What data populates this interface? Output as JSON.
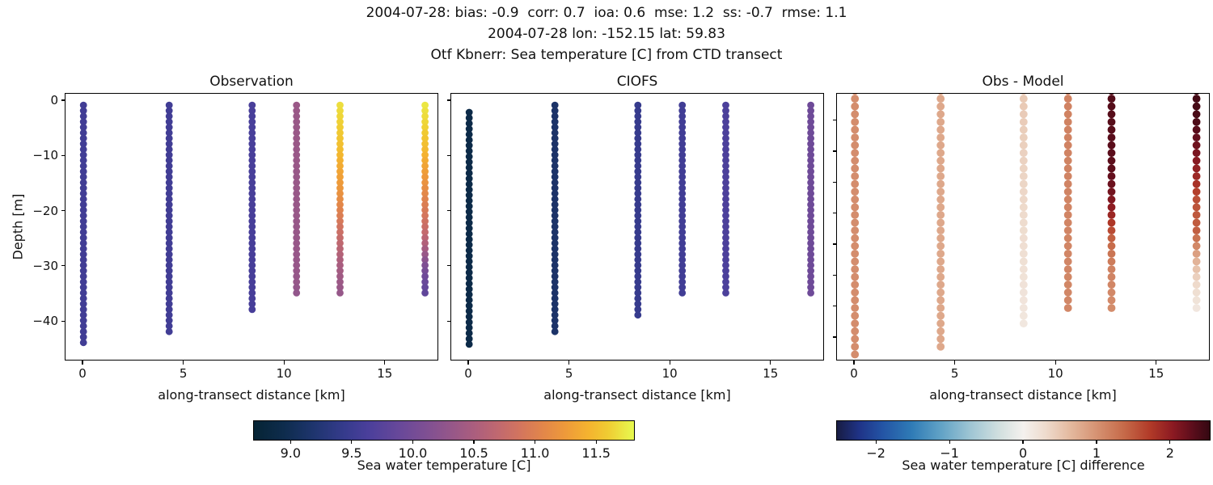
{
  "header": {
    "line1": "2004-07-28: bias: -0.9  corr: 0.7  ioa: 0.6  mse: 1.2  ss: -0.7  rmse: 1.1",
    "line2": "2004-07-28 lon: -152.15 lat: 59.83",
    "line3": "Otf Kbnerr: Sea temperature [C] from CTD transect"
  },
  "axes": {
    "xlabel": "along-transect distance [km]",
    "ylabel": "Depth [m]",
    "x_tick_values": [
      0,
      5,
      10,
      15
    ],
    "x_tick_labels": [
      "0",
      "5",
      "10",
      "15"
    ],
    "y_tick_values": [
      0,
      -10,
      -20,
      -30,
      -40
    ],
    "y_tick_labels": [
      "0",
      "−10",
      "−20",
      "−30",
      "−40"
    ],
    "panel3_y_tick_values": [
      -5,
      -10,
      -15,
      -20,
      -25,
      -30,
      -35,
      -40
    ]
  },
  "panels": [
    {
      "title": "Observation"
    },
    {
      "title": "CIOFS"
    },
    {
      "title": "Obs - Model"
    }
  ],
  "colorbars": [
    {
      "label": "Sea water temperature [C]",
      "tick_values": [
        9.0,
        9.5,
        10.0,
        10.5,
        11.0,
        11.5
      ],
      "tick_labels": [
        "9.0",
        "9.5",
        "10.0",
        "10.5",
        "11.0",
        "11.5"
      ],
      "vmin": 8.7,
      "vmax": 11.81,
      "cmap": "thermal"
    },
    {
      "label": "Sea water temperature [C] difference",
      "tick_values": [
        -2,
        -1,
        0,
        1,
        2
      ],
      "tick_labels": [
        "−2",
        "−1",
        "0",
        "1",
        "2"
      ],
      "vmin": -2.53,
      "vmax": 2.54,
      "cmap": "balance"
    }
  ],
  "colormaps": {
    "thermal": [
      [
        0.0,
        "#062434"
      ],
      [
        0.08,
        "#0e2c4d"
      ],
      [
        0.16,
        "#1f356f"
      ],
      [
        0.24,
        "#363b8d"
      ],
      [
        0.3,
        "#4a3f9b"
      ],
      [
        0.38,
        "#67489a"
      ],
      [
        0.46,
        "#815092"
      ],
      [
        0.52,
        "#965789"
      ],
      [
        0.58,
        "#ab5e7e"
      ],
      [
        0.64,
        "#c06870"
      ],
      [
        0.7,
        "#d3755e"
      ],
      [
        0.76,
        "#e2864a"
      ],
      [
        0.82,
        "#ee9a3a"
      ],
      [
        0.88,
        "#f4b32f"
      ],
      [
        0.93,
        "#f0cb32"
      ],
      [
        1.0,
        "#e7fa4f"
      ]
    ],
    "balance": [
      [
        0.0,
        "#181c43"
      ],
      [
        0.06,
        "#1f3387"
      ],
      [
        0.12,
        "#2353a4"
      ],
      [
        0.2,
        "#2f7bb6"
      ],
      [
        0.28,
        "#62a3c6"
      ],
      [
        0.36,
        "#a0c6d4"
      ],
      [
        0.44,
        "#d4e1e0"
      ],
      [
        0.5,
        "#f4f1ee"
      ],
      [
        0.56,
        "#eedbcd"
      ],
      [
        0.63,
        "#e3b79c"
      ],
      [
        0.7,
        "#d59070"
      ],
      [
        0.77,
        "#c66a49"
      ],
      [
        0.84,
        "#b13a28"
      ],
      [
        0.9,
        "#8c1a22"
      ],
      [
        0.95,
        "#5f0e1c"
      ],
      [
        1.0,
        "#330812"
      ]
    ]
  },
  "chart_data": [
    {
      "type": "scatter",
      "title": "Observation",
      "xlabel": "along-transect distance [km]",
      "ylabel": "Depth [m]",
      "xlim": [
        -0.8,
        17.75
      ],
      "ylim": [
        -47.3,
        1.2
      ],
      "value": "sea water temperature [C]",
      "cmap": "thermal",
      "vmin": 8.7,
      "vmax": 11.81,
      "columns": [
        {
          "x_km": 0.05,
          "top": -0.9,
          "bottom": -44.8,
          "step": 1.0,
          "profile": [
            [
              -0.9,
              9.55
            ],
            [
              -44.8,
              9.55
            ]
          ]
        },
        {
          "x_km": 4.3,
          "top": -0.9,
          "bottom": -42.8,
          "step": 1.0,
          "profile": [
            [
              -0.9,
              9.55
            ],
            [
              -42.8,
              9.55
            ]
          ]
        },
        {
          "x_km": 8.42,
          "top": -0.9,
          "bottom": -38.6,
          "step": 1.0,
          "profile": [
            [
              -0.9,
              9.62
            ],
            [
              -38.6,
              9.6
            ]
          ]
        },
        {
          "x_km": 10.62,
          "top": -0.9,
          "bottom": -35.5,
          "step": 1.0,
          "profile": [
            [
              -0.9,
              10.35
            ],
            [
              -33,
              10.32
            ],
            [
              -35.5,
              10.27
            ]
          ]
        },
        {
          "x_km": 12.78,
          "top": -0.9,
          "bottom": -35.5,
          "step": 1.0,
          "profile": [
            [
              -0.9,
              11.68
            ],
            [
              -5,
              11.6
            ],
            [
              -9,
              11.5
            ],
            [
              -13,
              11.33
            ],
            [
              -16,
              11.22
            ],
            [
              -19,
              11.07
            ],
            [
              -21,
              10.97
            ],
            [
              -23,
              10.85
            ],
            [
              -26,
              10.68
            ],
            [
              -29,
              10.52
            ],
            [
              -32,
              10.4
            ],
            [
              -35.5,
              10.3
            ]
          ]
        },
        {
          "x_km": 17.0,
          "top": -0.9,
          "bottom": -35.5,
          "step": 1.0,
          "profile": [
            [
              -0.9,
              11.72
            ],
            [
              -5,
              11.62
            ],
            [
              -9,
              11.48
            ],
            [
              -12,
              11.32
            ],
            [
              -15,
              11.18
            ],
            [
              -18,
              11.02
            ],
            [
              -21,
              10.88
            ],
            [
              -24,
              10.72
            ],
            [
              -26,
              10.55
            ],
            [
              -28,
              10.32
            ],
            [
              -30,
              10.1
            ],
            [
              -32,
              9.95
            ],
            [
              -35.5,
              9.8
            ]
          ]
        }
      ]
    },
    {
      "type": "scatter",
      "title": "CIOFS",
      "xlabel": "along-transect distance [km]",
      "ylabel": "Depth [m]",
      "xlim": [
        -0.8,
        17.75
      ],
      "ylim": [
        -47.3,
        1.2
      ],
      "value": "sea water temperature [C]",
      "cmap": "thermal",
      "vmin": 8.7,
      "vmax": 11.81,
      "columns": [
        {
          "x_km": 0.05,
          "top": -2.2,
          "bottom": -44.2,
          "step": 1.0,
          "profile": [
            [
              -2.2,
              8.9
            ],
            [
              -44.2,
              8.9
            ]
          ]
        },
        {
          "x_km": 4.3,
          "top": -0.9,
          "bottom": -42.8,
          "step": 1.0,
          "profile": [
            [
              -0.9,
              9.15
            ],
            [
              -42.8,
              9.15
            ]
          ]
        },
        {
          "x_km": 8.42,
          "top": -0.9,
          "bottom": -39.0,
          "step": 1.0,
          "profile": [
            [
              -0.9,
              9.45
            ],
            [
              -39.0,
              9.45
            ]
          ]
        },
        {
          "x_km": 10.62,
          "top": -0.9,
          "bottom": -35.6,
          "step": 1.0,
          "profile": [
            [
              -0.9,
              9.55
            ],
            [
              -35.6,
              9.55
            ]
          ]
        },
        {
          "x_km": 12.78,
          "top": -0.9,
          "bottom": -35.5,
          "step": 1.0,
          "profile": [
            [
              -0.9,
              9.65
            ],
            [
              -35.5,
              9.65
            ]
          ]
        },
        {
          "x_km": 17.0,
          "top": -0.9,
          "bottom": -35.5,
          "step": 1.0,
          "profile": [
            [
              -0.9,
              9.95
            ],
            [
              -35.5,
              9.95
            ]
          ]
        }
      ]
    },
    {
      "type": "scatter",
      "title": "Obs - Model",
      "xlabel": "along-transect distance [km]",
      "ylabel": "Depth [m]",
      "xlim": [
        -0.8,
        17.75
      ],
      "ylim": [
        -43.9,
        -0.75
      ],
      "value": "sea water temperature difference [C]",
      "cmap": "balance",
      "vmin": -2.53,
      "vmax": 2.54,
      "columns": [
        {
          "x_km": 0.05,
          "top": -0.3,
          "bottom": -44.0,
          "step": 1.25,
          "profile": [
            [
              -0.3,
              1.05
            ],
            [
              -44.0,
              1.05
            ]
          ]
        },
        {
          "x_km": 4.3,
          "top": -0.3,
          "bottom": -42.0,
          "step": 1.25,
          "profile": [
            [
              -0.3,
              0.8
            ],
            [
              -42.0,
              0.8
            ]
          ]
        },
        {
          "x_km": 8.42,
          "top": -0.3,
          "bottom": -38.5,
          "step": 1.25,
          "profile": [
            [
              -0.3,
              0.5
            ],
            [
              -38.5,
              0.14
            ]
          ]
        },
        {
          "x_km": 10.62,
          "top": -0.3,
          "bottom": -35.5,
          "step": 1.25,
          "profile": [
            [
              -0.3,
              1.15
            ],
            [
              -35.5,
              1.1
            ]
          ]
        },
        {
          "x_km": 12.78,
          "top": -0.3,
          "bottom": -36.0,
          "step": 1.25,
          "profile": [
            [
              -0.3,
              2.35
            ],
            [
              -13,
              2.3
            ],
            [
              -17,
              2.15
            ],
            [
              -20,
              1.95
            ],
            [
              -22,
              1.7
            ],
            [
              -24,
              1.45
            ],
            [
              -26,
              1.3
            ],
            [
              -29,
              1.15
            ],
            [
              -36,
              1.05
            ]
          ]
        },
        {
          "x_km": 17.0,
          "top": -0.3,
          "bottom": -36.0,
          "step": 1.25,
          "profile": [
            [
              -0.3,
              2.45
            ],
            [
              -5,
              2.4
            ],
            [
              -8,
              2.25
            ],
            [
              -11,
              2.1
            ],
            [
              -14,
              1.9
            ],
            [
              -16,
              1.75
            ],
            [
              -18,
              1.55
            ],
            [
              -23,
              1.45
            ],
            [
              -25,
              1.15
            ],
            [
              -27,
              0.8
            ],
            [
              -29,
              0.55
            ],
            [
              -31,
              0.35
            ],
            [
              -33,
              0.25
            ],
            [
              -36,
              0.12
            ]
          ]
        }
      ]
    }
  ]
}
